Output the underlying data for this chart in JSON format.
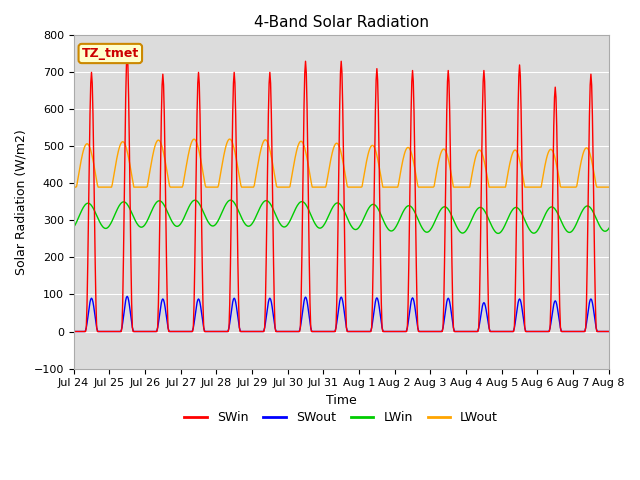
{
  "title": "4-Band Solar Radiation",
  "xlabel": "Time",
  "ylabel": "Solar Radiation (W/m2)",
  "ylim": [
    -100,
    800
  ],
  "yticks": [
    -100,
    0,
    100,
    200,
    300,
    400,
    500,
    600,
    700,
    800
  ],
  "colors": {
    "SWin": "#ff0000",
    "SWout": "#0000ff",
    "LWin": "#00cc00",
    "LWout": "#ffa500"
  },
  "bg_color": "#dcdcdc",
  "label_box": "TZ_tmet",
  "label_box_bg": "#ffffcc",
  "label_box_edge": "#cc8800",
  "grid_color": "#ffffff",
  "SWin_amps": [
    700,
    750,
    695,
    700,
    700,
    700,
    730,
    730,
    710,
    705,
    705,
    705,
    720,
    660,
    695,
    700
  ],
  "SWout_amps": [
    90,
    95,
    88,
    88,
    90,
    90,
    93,
    93,
    91,
    91,
    90,
    78,
    88,
    83,
    88,
    88
  ],
  "LWin_base": 310,
  "LWin_amplitude": 35,
  "LWout_base": 415,
  "LWout_amplitude": 90
}
